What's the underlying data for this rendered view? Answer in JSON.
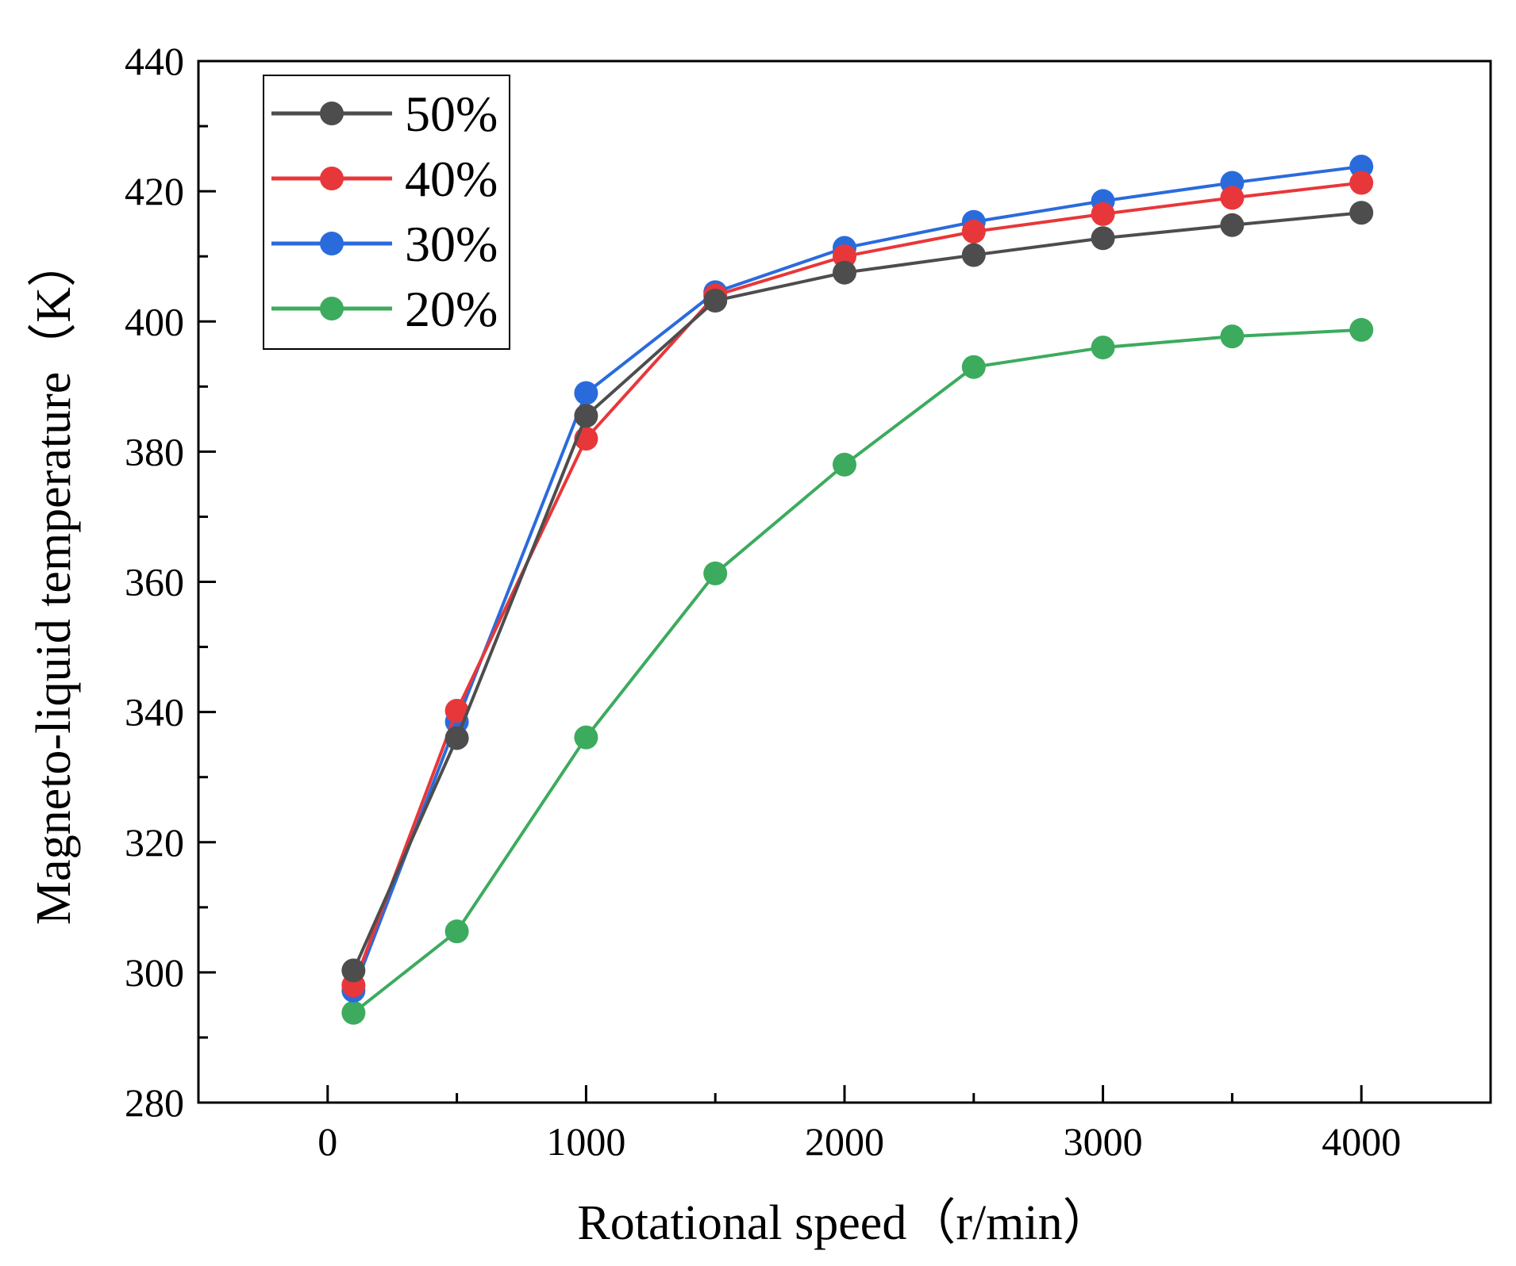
{
  "chart_data": {
    "type": "line",
    "title": "",
    "xlabel": "Rotational speed（r/min）",
    "ylabel": "Magneto-liquid temperature（K）",
    "xlim": [
      -500,
      4500
    ],
    "ylim": [
      280,
      440
    ],
    "x_ticks": [
      0,
      1000,
      2000,
      3000,
      4000
    ],
    "x_tick_labels": [
      "0",
      "1000",
      "2000",
      "3000",
      "4000"
    ],
    "y_ticks": [
      280,
      300,
      320,
      340,
      360,
      380,
      400,
      420,
      440
    ],
    "y_tick_labels": [
      "280",
      "300",
      "320",
      "340",
      "360",
      "380",
      "400",
      "420",
      "440"
    ],
    "grid": false,
    "legend_position": "top-left",
    "x": [
      100,
      500,
      1000,
      1500,
      2000,
      2500,
      3000,
      3500,
      4000
    ],
    "series": [
      {
        "name": "50%",
        "color": "#4d4d4d",
        "values": [
          300.3,
          336.0,
          385.5,
          403.2,
          407.5,
          410.2,
          412.8,
          414.8,
          416.7
        ]
      },
      {
        "name": "40%",
        "color": "#e8373a",
        "values": [
          298.0,
          340.2,
          382.0,
          404.0,
          410.0,
          413.8,
          416.5,
          419.0,
          421.3
        ]
      },
      {
        "name": "30%",
        "color": "#2a6bdc",
        "values": [
          297.2,
          338.5,
          389.0,
          404.5,
          411.3,
          415.3,
          418.5,
          421.3,
          423.8
        ]
      },
      {
        "name": "20%",
        "color": "#3cab5e",
        "values": [
          293.8,
          306.3,
          336.1,
          361.3,
          378.0,
          393.0,
          396.0,
          397.7,
          398.7
        ]
      }
    ]
  }
}
